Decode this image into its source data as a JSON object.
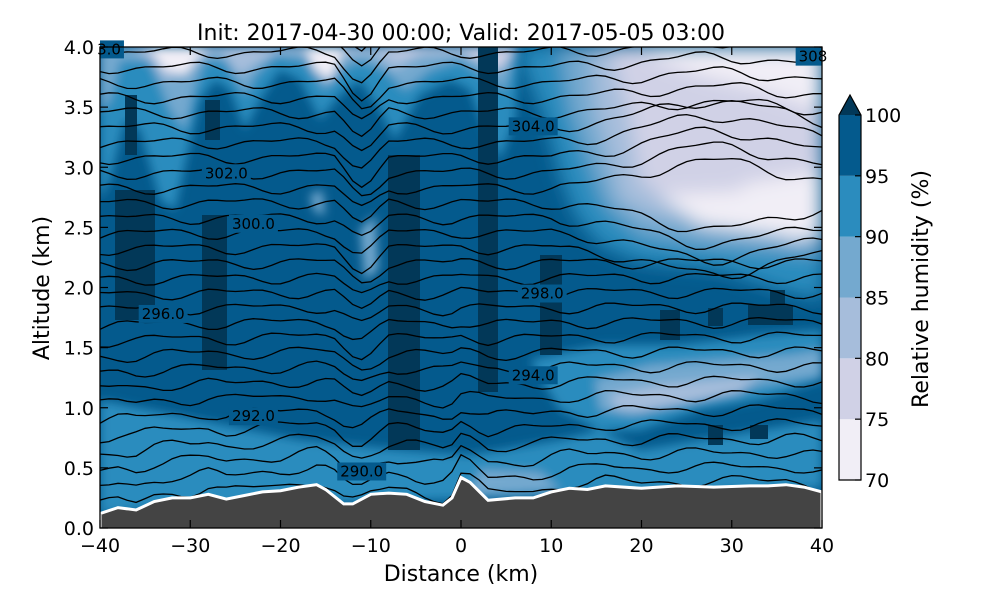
{
  "chart_data": {
    "type": "contour",
    "title": "Init: 2017-04-30 00:00; Valid: 2017-05-05 03:00",
    "xlabel": "Distance (km)",
    "ylabel": "Altitude (km)",
    "xlim": [
      -40,
      40
    ],
    "ylim": [
      0.0,
      4.0
    ],
    "xticks": [
      "−40",
      "−30",
      "−20",
      "−10",
      "0",
      "10",
      "20",
      "30",
      "40"
    ],
    "yticks": [
      "0.0",
      "0.5",
      "1.0",
      "1.5",
      "2.0",
      "2.5",
      "3.0",
      "3.5",
      "4.0"
    ],
    "colorbar": {
      "label": "Relative humidity (%)",
      "levels": [
        70,
        75,
        80,
        85,
        90,
        95,
        100
      ],
      "tick_labels": [
        "70",
        "75",
        "80",
        "85",
        "90",
        "95",
        "100"
      ],
      "colors": [
        "#f1eef6",
        "#d0d1e6",
        "#a6bddb",
        "#74a9cf",
        "#2b8cbe",
        "#045a8d",
        "#023858"
      ],
      "extend": "max"
    },
    "contour_labels": [
      {
        "text": "290.0",
        "x": -11,
        "y": 0.47
      },
      {
        "text": "292.0",
        "x": -23,
        "y": 0.93
      },
      {
        "text": "294.0",
        "x": 8,
        "y": 1.27
      },
      {
        "text": "296.0",
        "x": -33,
        "y": 1.78
      },
      {
        "text": "298.0",
        "x": 9,
        "y": 1.95
      },
      {
        "text": "300.0",
        "x": -23,
        "y": 2.53
      },
      {
        "text": "302.0",
        "x": -26,
        "y": 2.95
      },
      {
        "text": "304.0",
        "x": 8,
        "y": 3.34
      },
      {
        "text": "308",
        "x": 39,
        "y": 3.92
      },
      {
        "text": "3.0",
        "x": -39,
        "y": 3.98
      }
    ],
    "terrain_profile": [
      [
        -40,
        0.12
      ],
      [
        -38,
        0.17
      ],
      [
        -36,
        0.15
      ],
      [
        -34,
        0.22
      ],
      [
        -32,
        0.25
      ],
      [
        -30,
        0.25
      ],
      [
        -28,
        0.28
      ],
      [
        -26,
        0.24
      ],
      [
        -24,
        0.27
      ],
      [
        -22,
        0.3
      ],
      [
        -20,
        0.31
      ],
      [
        -18,
        0.34
      ],
      [
        -16,
        0.36
      ],
      [
        -15,
        0.32
      ],
      [
        -13,
        0.2
      ],
      [
        -12,
        0.2
      ],
      [
        -10,
        0.28
      ],
      [
        -8,
        0.29
      ],
      [
        -6,
        0.28
      ],
      [
        -4,
        0.22
      ],
      [
        -2,
        0.19
      ],
      [
        -1,
        0.25
      ],
      [
        0,
        0.42
      ],
      [
        1,
        0.38
      ],
      [
        3,
        0.23
      ],
      [
        6,
        0.25
      ],
      [
        8,
        0.25
      ],
      [
        10,
        0.3
      ],
      [
        12,
        0.33
      ],
      [
        14,
        0.32
      ],
      [
        16,
        0.35
      ],
      [
        20,
        0.33
      ],
      [
        24,
        0.35
      ],
      [
        28,
        0.34
      ],
      [
        32,
        0.35
      ],
      [
        34,
        0.35
      ],
      [
        36,
        0.36
      ],
      [
        38,
        0.34
      ],
      [
        40,
        0.3
      ]
    ]
  }
}
